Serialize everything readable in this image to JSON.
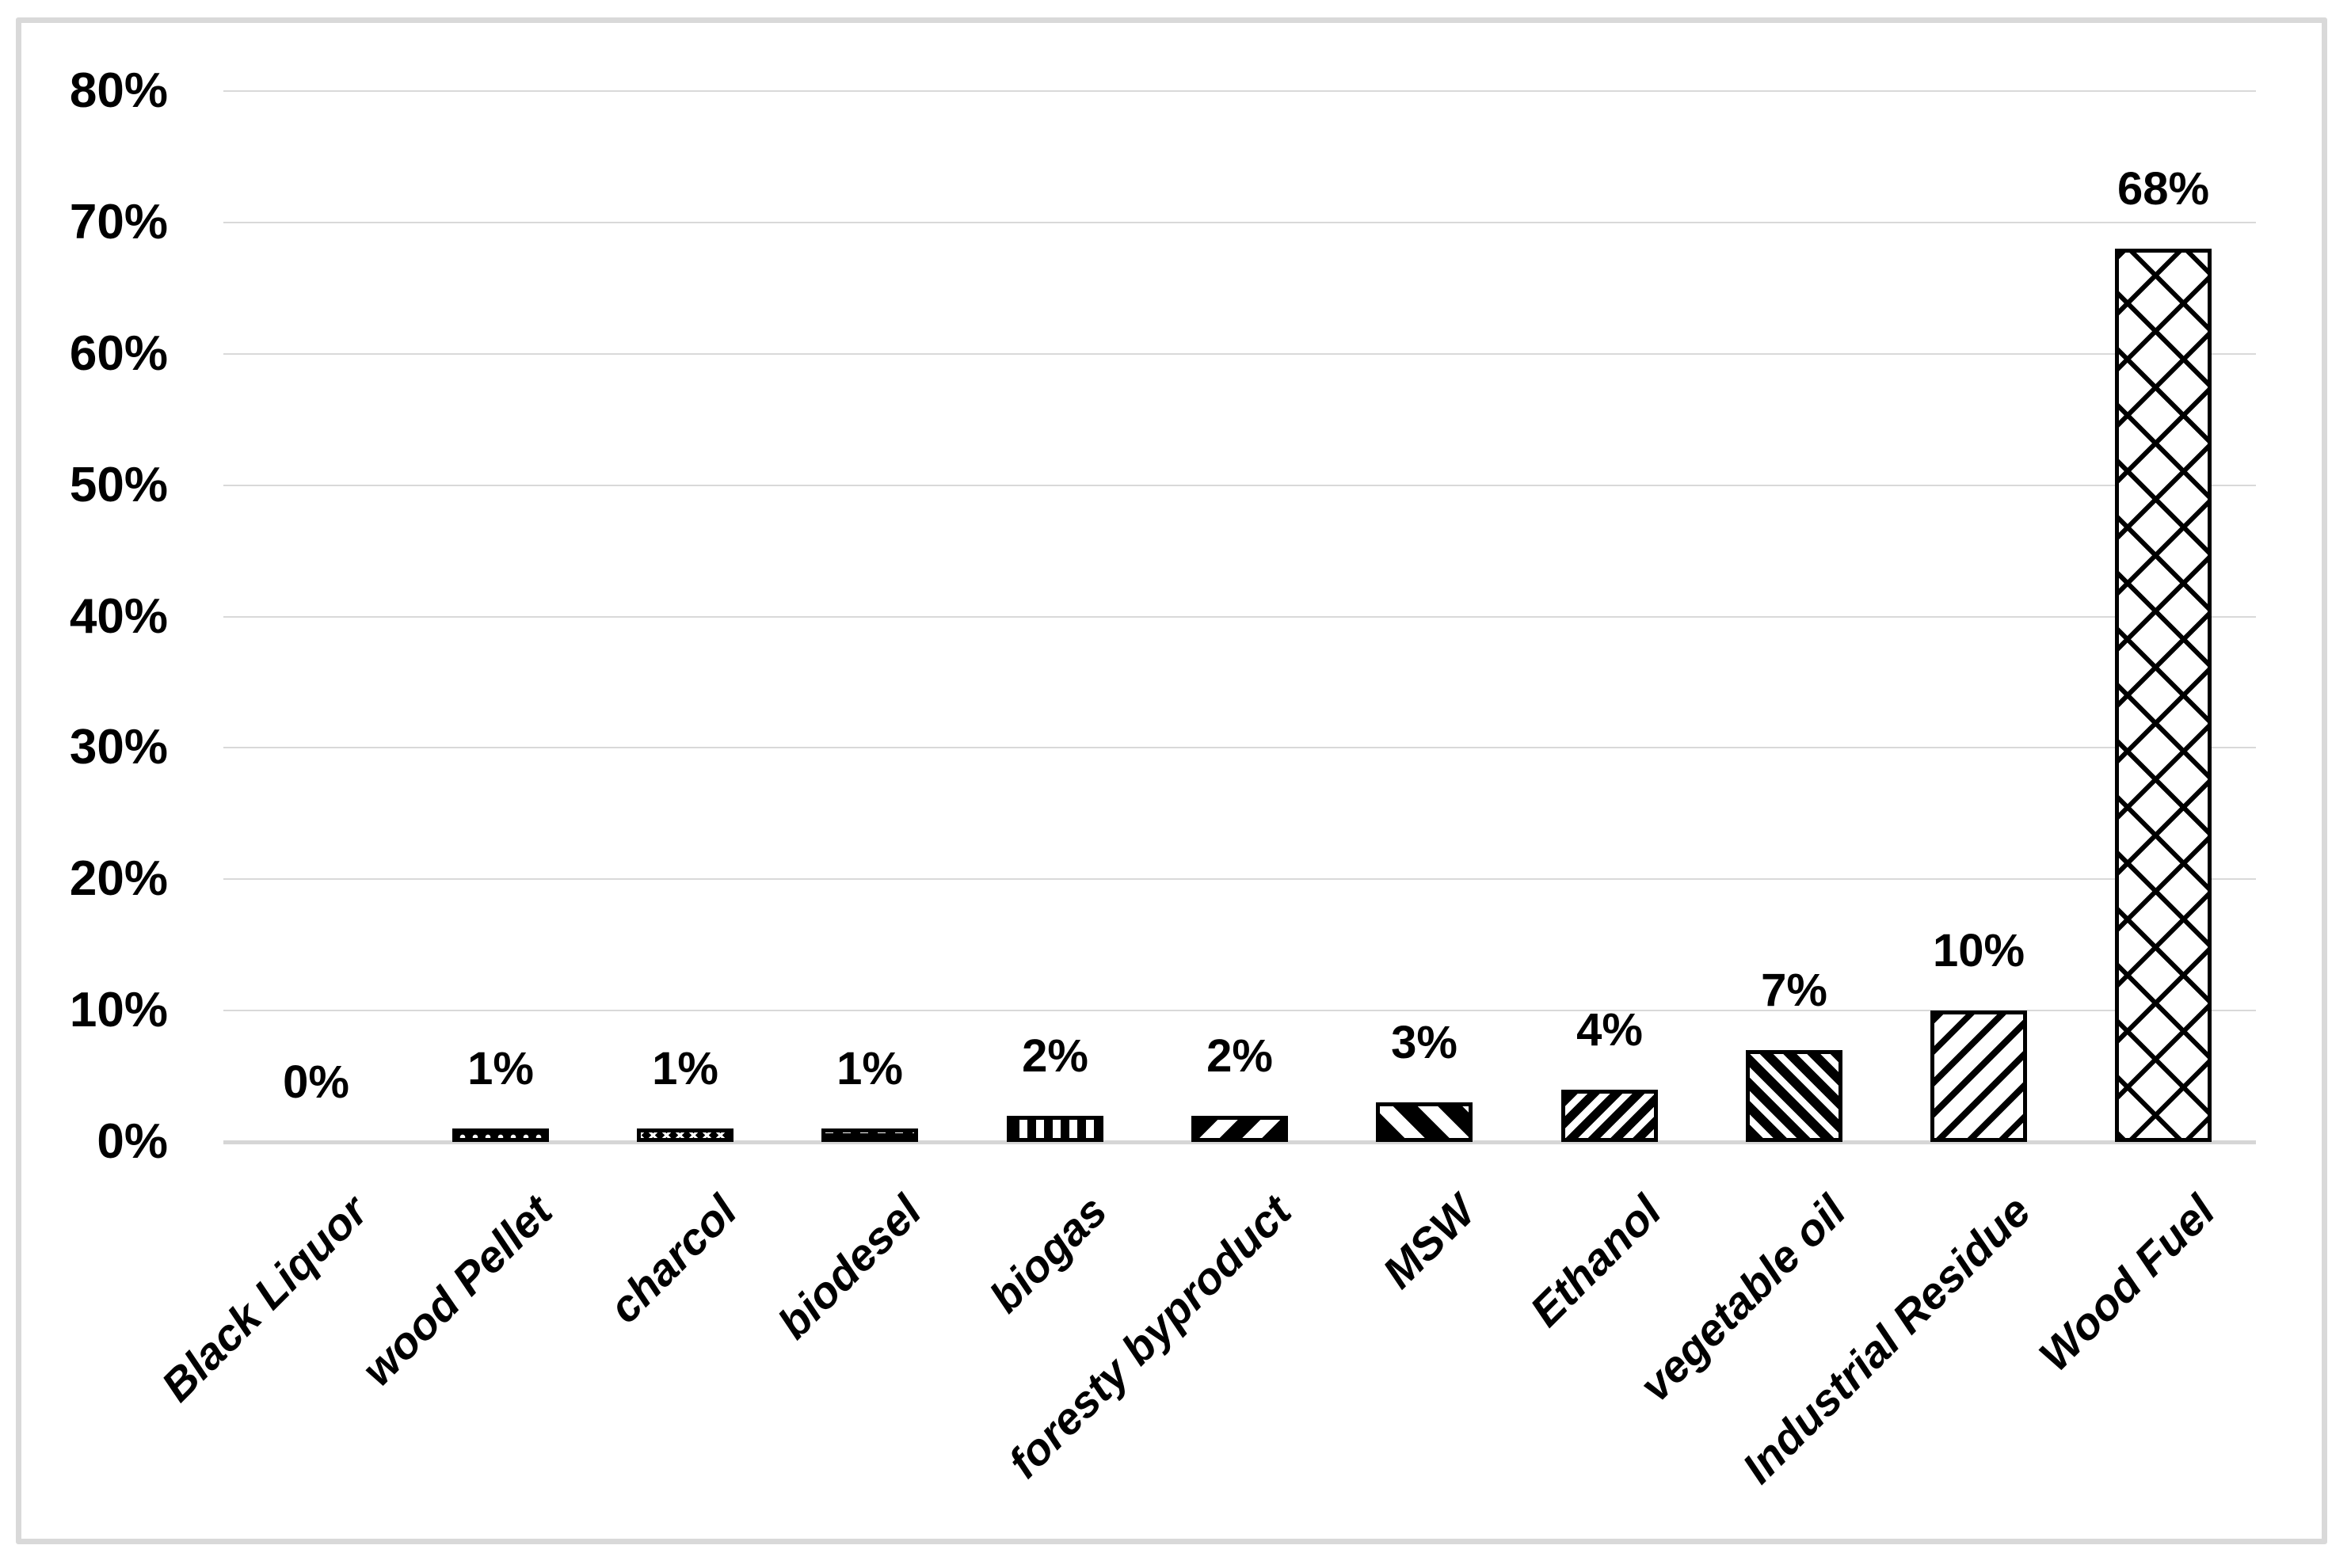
{
  "chart_data": {
    "type": "bar",
    "title": "",
    "xlabel": "",
    "ylabel": "",
    "categories": [
      "Black Liquor",
      "wood Pellet",
      "charcol",
      "biodesel",
      "biogas",
      "foresty byproduct",
      "MSW",
      "Ethanol",
      "vegetable oil",
      "Industrial Residue",
      "Wood Fuel"
    ],
    "values": [
      0,
      1,
      1,
      1,
      2,
      2,
      3,
      4,
      7,
      10,
      68
    ],
    "value_labels": [
      "0%",
      "1%",
      "1%",
      "1%",
      "2%",
      "2%",
      "3%",
      "4%",
      "7%",
      "10%",
      "68%"
    ],
    "y_ticks": [
      "0%",
      "10%",
      "20%",
      "30%",
      "40%",
      "50%",
      "60%",
      "70%",
      "80%"
    ],
    "ylim": [
      0,
      80
    ],
    "grid": "horizontal",
    "legend_position": "none",
    "bar_patterns": [
      "none",
      "black-white-dots",
      "black-white-crosshatch",
      "black-white-dashes",
      "vertical-stripes",
      "wide-diagonal-up-stripes",
      "wide-diagonal-down-stripes",
      "diagonal-up-stripes",
      "dense-diagonal-down-stripes",
      "thin-diagonal-up-stripes",
      "diamond-lattice"
    ],
    "colors": {
      "bar_stroke": "#000000",
      "pattern_ink": "#000000",
      "pattern_background": "#ffffff",
      "gridline": "#d9d9d9",
      "axis_line": "#d6d6d6",
      "text": "#000000",
      "frame_border": "#d9d9d9",
      "background": "#ffffff"
    }
  }
}
